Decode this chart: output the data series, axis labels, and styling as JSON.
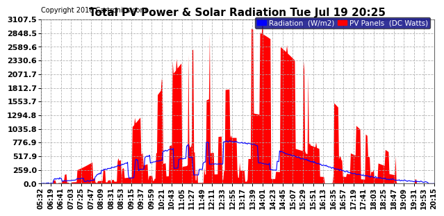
{
  "title": "Total PV Power & Solar Radiation Tue Jul 19 20:25",
  "copyright": "Copyright 2016 Cartronics.com",
  "legend_labels": [
    "Radiation  (W/m2)",
    "PV Panels  (DC Watts)"
  ],
  "bg_color": "#ffffff",
  "plot_bg_color": "#ffffff",
  "grid_color": "#aaaaaa",
  "yticks": [
    0.0,
    259.0,
    517.9,
    776.9,
    1035.8,
    1294.8,
    1553.7,
    1812.7,
    2071.7,
    2330.6,
    2589.6,
    2848.5,
    3107.5
  ],
  "ymax": 3107.5,
  "n_points": 500,
  "x_labels": [
    "05:32",
    "06:19",
    "06:41",
    "07:03",
    "07:25",
    "07:47",
    "08:09",
    "08:31",
    "08:53",
    "09:15",
    "09:37",
    "09:59",
    "10:21",
    "10:43",
    "11:05",
    "11:27",
    "11:49",
    "12:11",
    "12:33",
    "12:55",
    "13:17",
    "13:39",
    "14:01",
    "14:23",
    "14:45",
    "15:07",
    "15:29",
    "15:51",
    "16:13",
    "16:35",
    "16:57",
    "17:19",
    "17:41",
    "18:03",
    "18:25",
    "18:47",
    "19:09",
    "19:31",
    "19:53",
    "20:15"
  ],
  "pv_color": "#ff0000",
  "radiation_color": "#0000ff",
  "legend_bg": "#000080",
  "title_fontsize": 11,
  "copyright_fontsize": 7,
  "tick_fontsize": 7,
  "ytick_fontsize": 8
}
